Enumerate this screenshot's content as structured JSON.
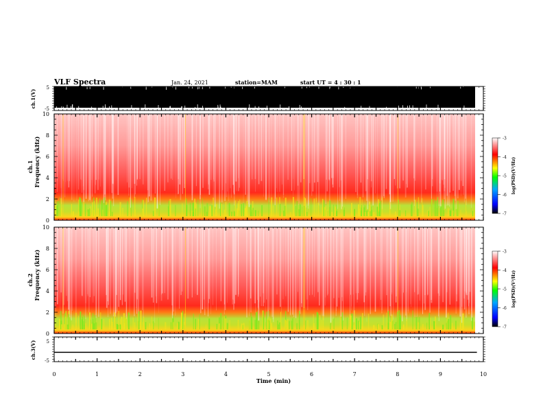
{
  "header": {
    "title": "VLF Spectra",
    "date": "Jan. 24, 2021",
    "station": "station=MAM",
    "start": "start  UT  =   4 : 30 : 1"
  },
  "chart_data": [
    {
      "type": "line",
      "panel": "waveform-ch1",
      "ylabel": "ch.1(V)",
      "ylim": [
        -5,
        5
      ],
      "yticks": [
        "5",
        "-5"
      ],
      "xlim": [
        0,
        10
      ],
      "waveform_fill": "#000000",
      "data_end_min": 9.85
    },
    {
      "type": "heatmap",
      "panel": "spectrogram-ch1",
      "ylabel": [
        "ch.1",
        "Frequency  (kHz)"
      ],
      "ylim": [
        0,
        10
      ],
      "yticks": [
        "0",
        "2",
        "4",
        "6",
        "8",
        "10"
      ],
      "xlim": [
        0,
        10
      ],
      "data_end_min": 9.85,
      "colorbar": {
        "label": "log(PSD)(V²/Hz)",
        "range": [
          -7,
          -3
        ],
        "ticks": [
          "-3",
          "-4",
          "-5",
          "-6",
          "-7"
        ],
        "colors": [
          "#000000",
          "#0000ff",
          "#00a0ff",
          "#00ff00",
          "#ffff00",
          "#ff0000",
          "#ffffff"
        ]
      }
    },
    {
      "type": "heatmap",
      "panel": "spectrogram-ch2",
      "ylabel": [
        "ch.2",
        "Frequency  (kHz)"
      ],
      "ylim": [
        0,
        10
      ],
      "yticks": [
        "0",
        "2",
        "4",
        "6",
        "8",
        "10"
      ],
      "xlim": [
        0,
        10
      ],
      "data_end_min": 9.85,
      "colorbar": {
        "label": "log(PSD)(V²/Hz)",
        "range": [
          -7,
          -3
        ],
        "ticks": [
          "-3",
          "-4",
          "-5",
          "-6",
          "-7"
        ],
        "colors": [
          "#000000",
          "#0000ff",
          "#00a0ff",
          "#00ff00",
          "#ffff00",
          "#ff0000",
          "#ffffff"
        ]
      }
    },
    {
      "type": "line",
      "panel": "waveform-ch3",
      "ylabel": "ch.3(V)",
      "ylim": [
        -5,
        5
      ],
      "yticks": [
        "5",
        "-5"
      ],
      "xlim": [
        0,
        10
      ],
      "series": [
        {
          "x": [
            0,
            9.85
          ],
          "y": [
            -1.2,
            -1.2
          ]
        }
      ]
    }
  ],
  "xaxis": {
    "label": "Time  (min)",
    "ticks": [
      "0",
      "1",
      "2",
      "3",
      "4",
      "5",
      "6",
      "7",
      "8",
      "9",
      "10"
    ]
  }
}
